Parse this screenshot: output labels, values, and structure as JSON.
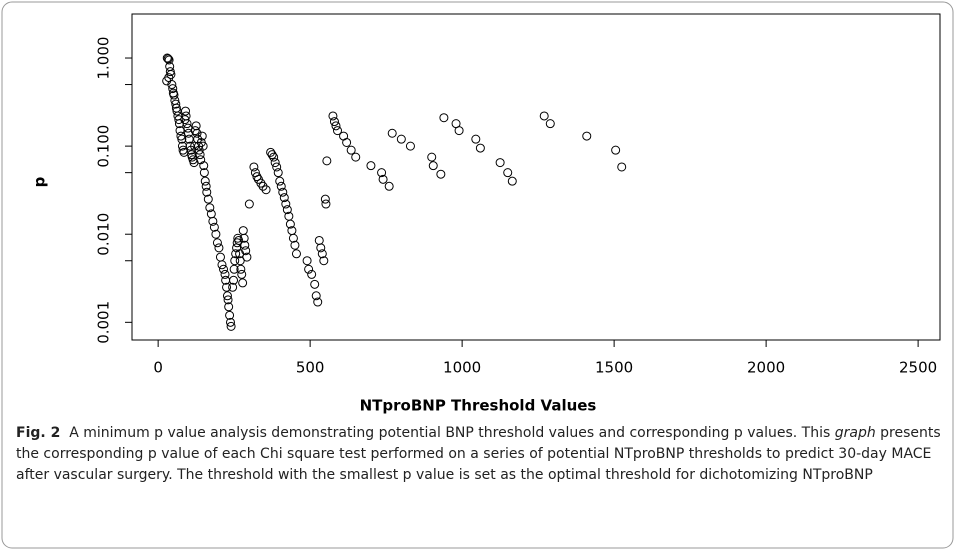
{
  "chart_data": {
    "type": "scatter",
    "x_label": "NTproBNP Threshold Values",
    "y_label": "p",
    "log_y": true,
    "color": "#000000",
    "xlim": [
      -86,
      2572
    ],
    "ylim": [
      0.00063,
      3.16
    ],
    "xticks": [
      0,
      500,
      1000,
      1500,
      2000,
      2500
    ],
    "yticks": [
      {
        "value": 0.001,
        "label": "0.001"
      },
      {
        "value": 0.01,
        "label": "0.010"
      },
      {
        "value": 0.1,
        "label": "0.100"
      },
      {
        "value": 1,
        "label": "1.000"
      }
    ],
    "yminorticks": [
      0.005,
      0.05,
      0.5
    ],
    "x": [
      30,
      33,
      36,
      28,
      35,
      38,
      40,
      42,
      45,
      48,
      50,
      52,
      55,
      58,
      60,
      62,
      65,
      68,
      70,
      72,
      75,
      78,
      80,
      82,
      85,
      88,
      90,
      92,
      95,
      98,
      100,
      102,
      105,
      108,
      110,
      112,
      115,
      118,
      120,
      122,
      125,
      128,
      130,
      133,
      135,
      138,
      140,
      142,
      145,
      148,
      150,
      152,
      155,
      158,
      160,
      165,
      170,
      175,
      180,
      185,
      190,
      195,
      200,
      205,
      210,
      215,
      220,
      222,
      225,
      228,
      230,
      232,
      235,
      238,
      240,
      245,
      248,
      250,
      252,
      255,
      258,
      260,
      262,
      265,
      268,
      270,
      272,
      275,
      278,
      280,
      283,
      285,
      288,
      292,
      300,
      315,
      320,
      325,
      330,
      338,
      345,
      355,
      370,
      375,
      380,
      385,
      390,
      395,
      400,
      405,
      410,
      415,
      420,
      425,
      430,
      435,
      440,
      445,
      450,
      455,
      490,
      495,
      505,
      515,
      520,
      525,
      530,
      535,
      540,
      545,
      550,
      552,
      555,
      575,
      580,
      585,
      590,
      610,
      620,
      635,
      650,
      700,
      735,
      740,
      760,
      770,
      800,
      830,
      900,
      905,
      930,
      940,
      980,
      990,
      1045,
      1060,
      1125,
      1150,
      1165,
      1270,
      1290,
      1410,
      1505,
      1525
    ],
    "values": [
      1.0,
      0.98,
      0.95,
      0.55,
      0.6,
      0.8,
      0.7,
      0.65,
      0.5,
      0.45,
      0.4,
      0.38,
      0.33,
      0.3,
      0.27,
      0.25,
      0.22,
      0.2,
      0.18,
      0.15,
      0.13,
      0.12,
      0.1,
      0.09,
      0.085,
      0.2,
      0.25,
      0.22,
      0.18,
      0.16,
      0.14,
      0.12,
      0.1,
      0.09,
      0.08,
      0.075,
      0.07,
      0.065,
      0.1,
      0.15,
      0.17,
      0.14,
      0.12,
      0.1,
      0.09,
      0.08,
      0.07,
      0.11,
      0.13,
      0.1,
      0.06,
      0.05,
      0.04,
      0.035,
      0.03,
      0.025,
      0.02,
      0.017,
      0.014,
      0.012,
      0.01,
      0.008,
      0.007,
      0.0055,
      0.0045,
      0.004,
      0.0035,
      0.003,
      0.0025,
      0.002,
      0.0018,
      0.0015,
      0.0012,
      0.001,
      0.0009,
      0.0025,
      0.003,
      0.004,
      0.005,
      0.006,
      0.007,
      0.008,
      0.009,
      0.0085,
      0.006,
      0.005,
      0.004,
      0.0035,
      0.0028,
      0.011,
      0.009,
      0.0075,
      0.0065,
      0.0055,
      0.022,
      0.058,
      0.05,
      0.045,
      0.042,
      0.038,
      0.035,
      0.032,
      0.085,
      0.08,
      0.075,
      0.065,
      0.058,
      0.05,
      0.04,
      0.035,
      0.03,
      0.026,
      0.022,
      0.019,
      0.016,
      0.013,
      0.011,
      0.009,
      0.0075,
      0.006,
      0.005,
      0.004,
      0.0035,
      0.0027,
      0.002,
      0.0017,
      0.0085,
      0.007,
      0.006,
      0.005,
      0.025,
      0.022,
      0.068,
      0.22,
      0.19,
      0.17,
      0.15,
      0.13,
      0.11,
      0.09,
      0.075,
      0.06,
      0.05,
      0.042,
      0.035,
      0.14,
      0.12,
      0.1,
      0.075,
      0.06,
      0.048,
      0.21,
      0.18,
      0.15,
      0.12,
      0.095,
      0.065,
      0.05,
      0.04,
      0.22,
      0.18,
      0.13,
      0.09,
      0.058
    ]
  },
  "caption": {
    "label": "Fig. 2",
    "text_before": "A minimum p value analysis demonstrating potential BNP threshold values and corresponding p values. This ",
    "italic": "graph",
    "text_after": " presents the corresponding p value of each Chi square test performed on a series of potential NTproBNP thresholds to predict 30-day MACE after vascular surgery. The threshold with the smallest p value is set as the optimal threshold for dichotomizing NTproBNP"
  }
}
